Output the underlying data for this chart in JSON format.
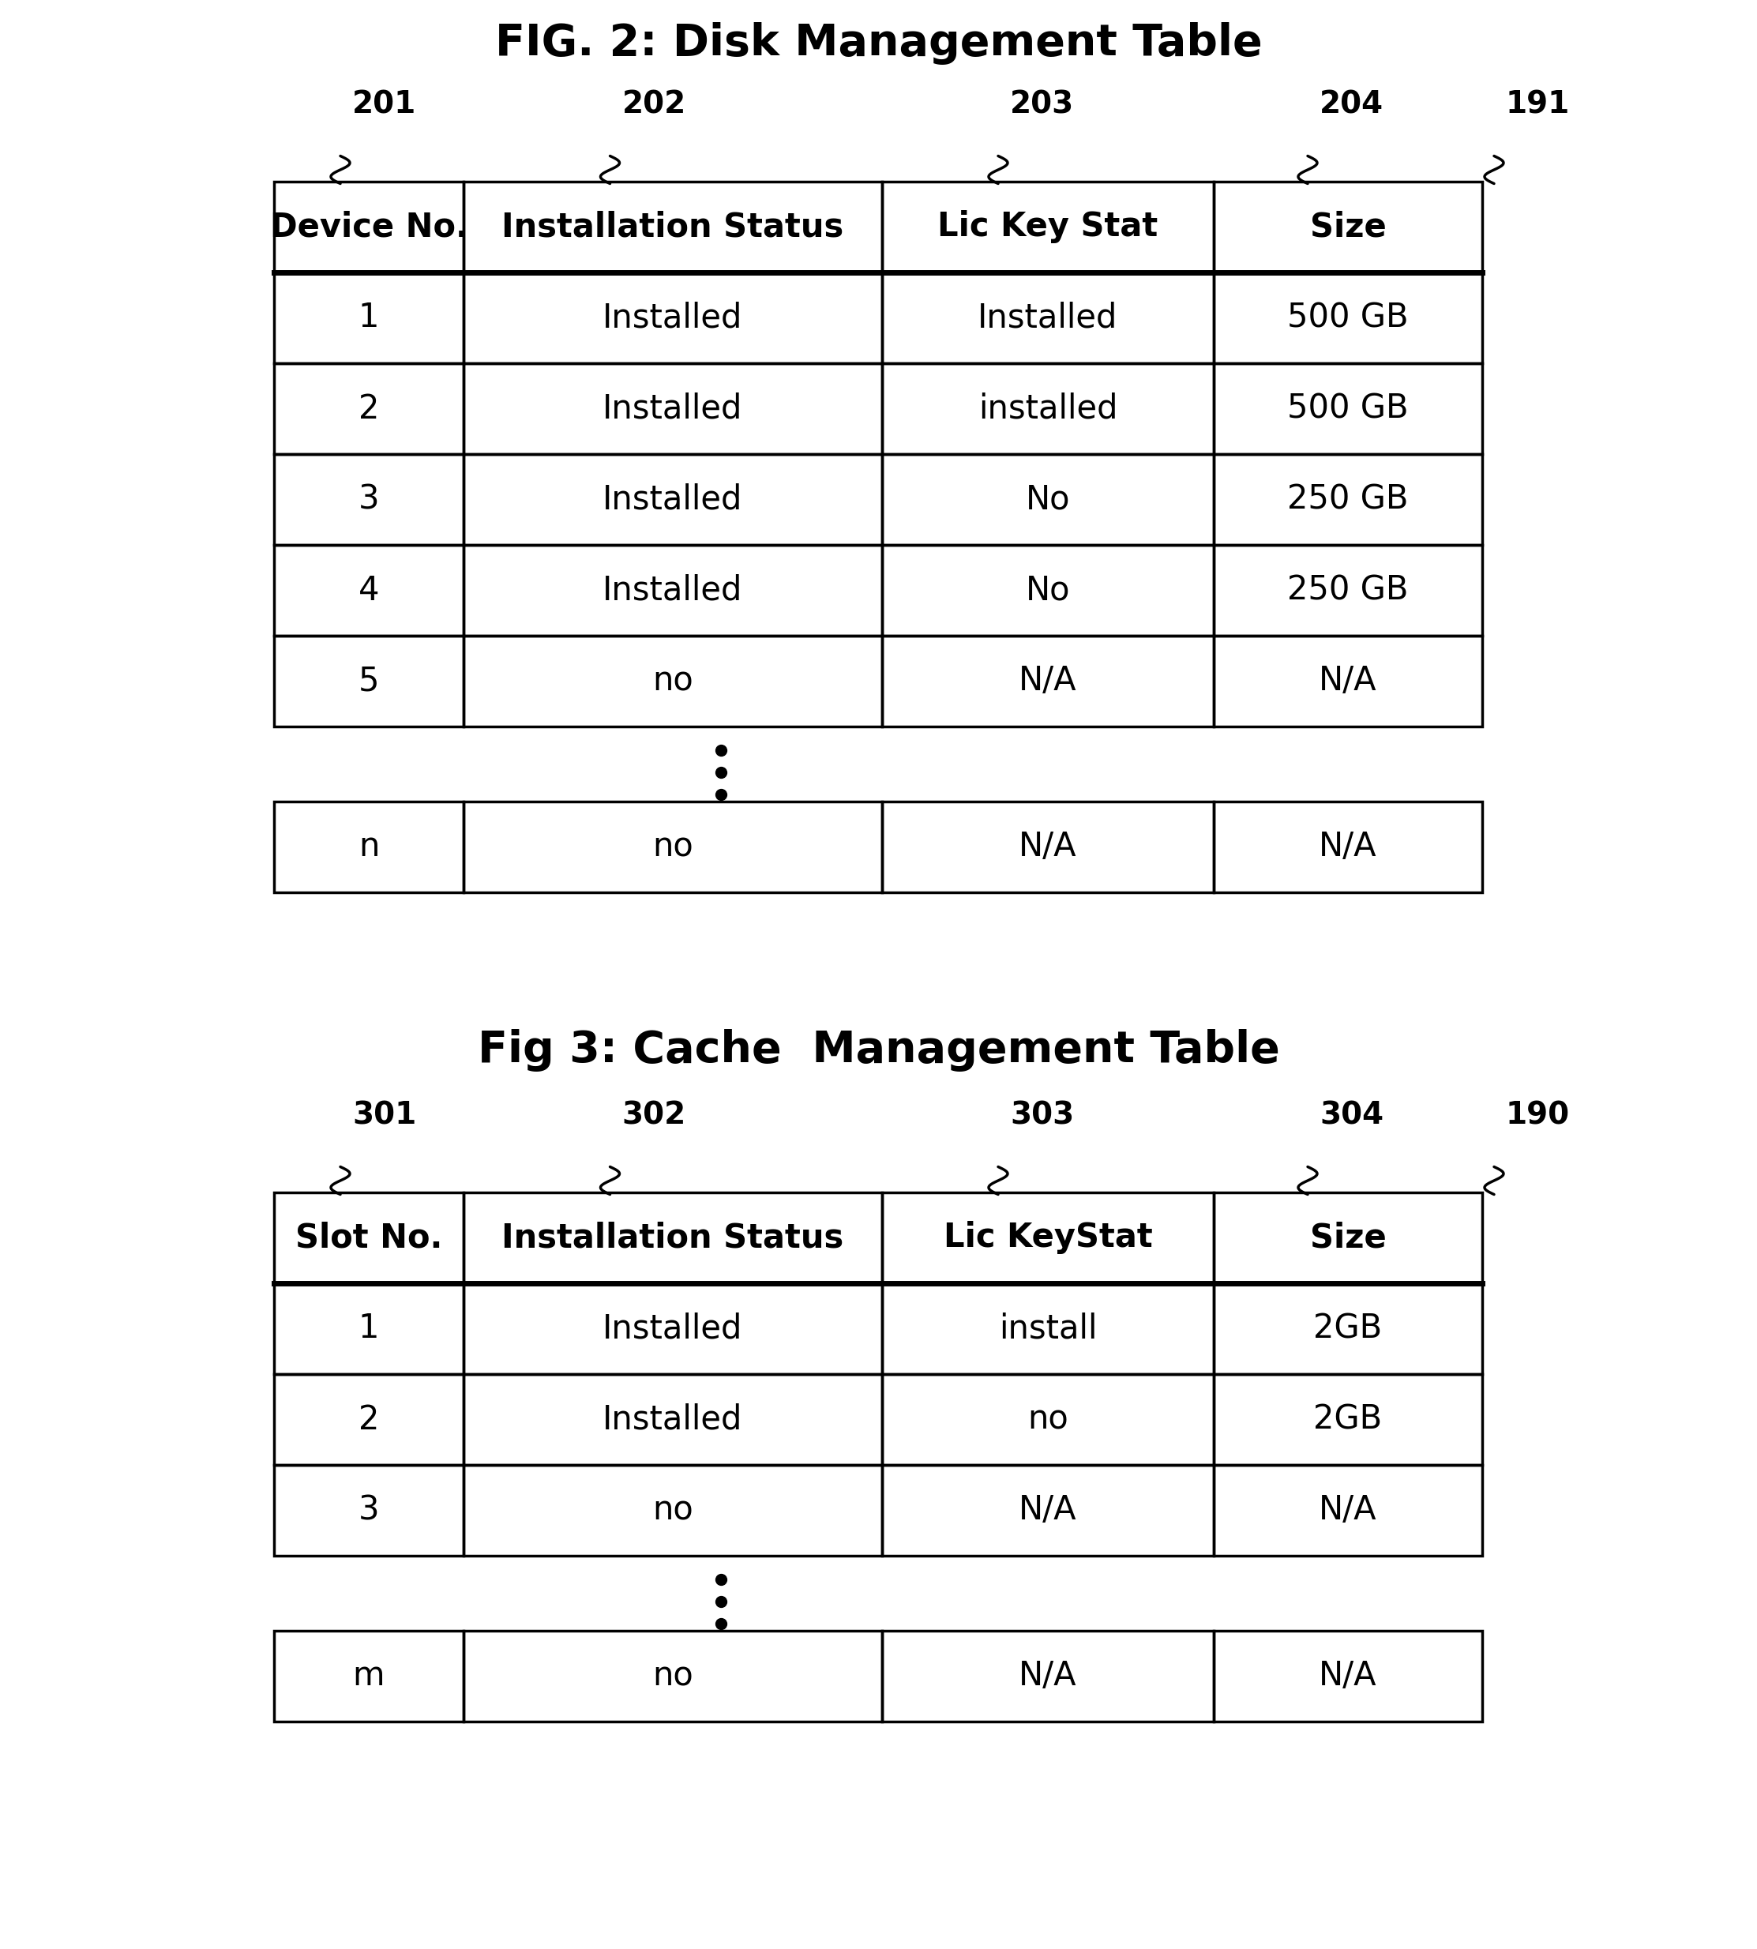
{
  "fig_title": "FIG. 2: Disk Management Table",
  "fig3_title": "Fig 3: Cache  Management Table",
  "bg_color": "#ffffff",
  "table1": {
    "ref_label": "191",
    "col_labels": [
      "201",
      "202",
      "203",
      "204"
    ],
    "headers": [
      "Device No.",
      "Installation Status",
      "Lic Key Stat",
      "Size"
    ],
    "rows": [
      [
        "1",
        "Installed",
        "Installed",
        "500 GB"
      ],
      [
        "2",
        "Installed",
        "installed",
        "500 GB"
      ],
      [
        "3",
        "Installed",
        "No",
        "250 GB"
      ],
      [
        "4",
        "Installed",
        "No",
        "250 GB"
      ],
      [
        "5",
        "no",
        "N/A",
        "N/A"
      ]
    ],
    "last_row": [
      "n",
      "no",
      "N/A",
      "N/A"
    ]
  },
  "table2": {
    "ref_label": "190",
    "col_labels": [
      "301",
      "302",
      "303",
      "304"
    ],
    "headers": [
      "Slot No.",
      "Installation Status",
      "Lic KeyStat",
      "Size"
    ],
    "rows": [
      [
        "1",
        "Installed",
        "install",
        "2GB"
      ],
      [
        "2",
        "Installed",
        "no",
        "2GB"
      ],
      [
        "3",
        "no",
        "N/A",
        "N/A"
      ]
    ],
    "last_row": [
      "m",
      "no",
      "N/A",
      "N/A"
    ]
  }
}
